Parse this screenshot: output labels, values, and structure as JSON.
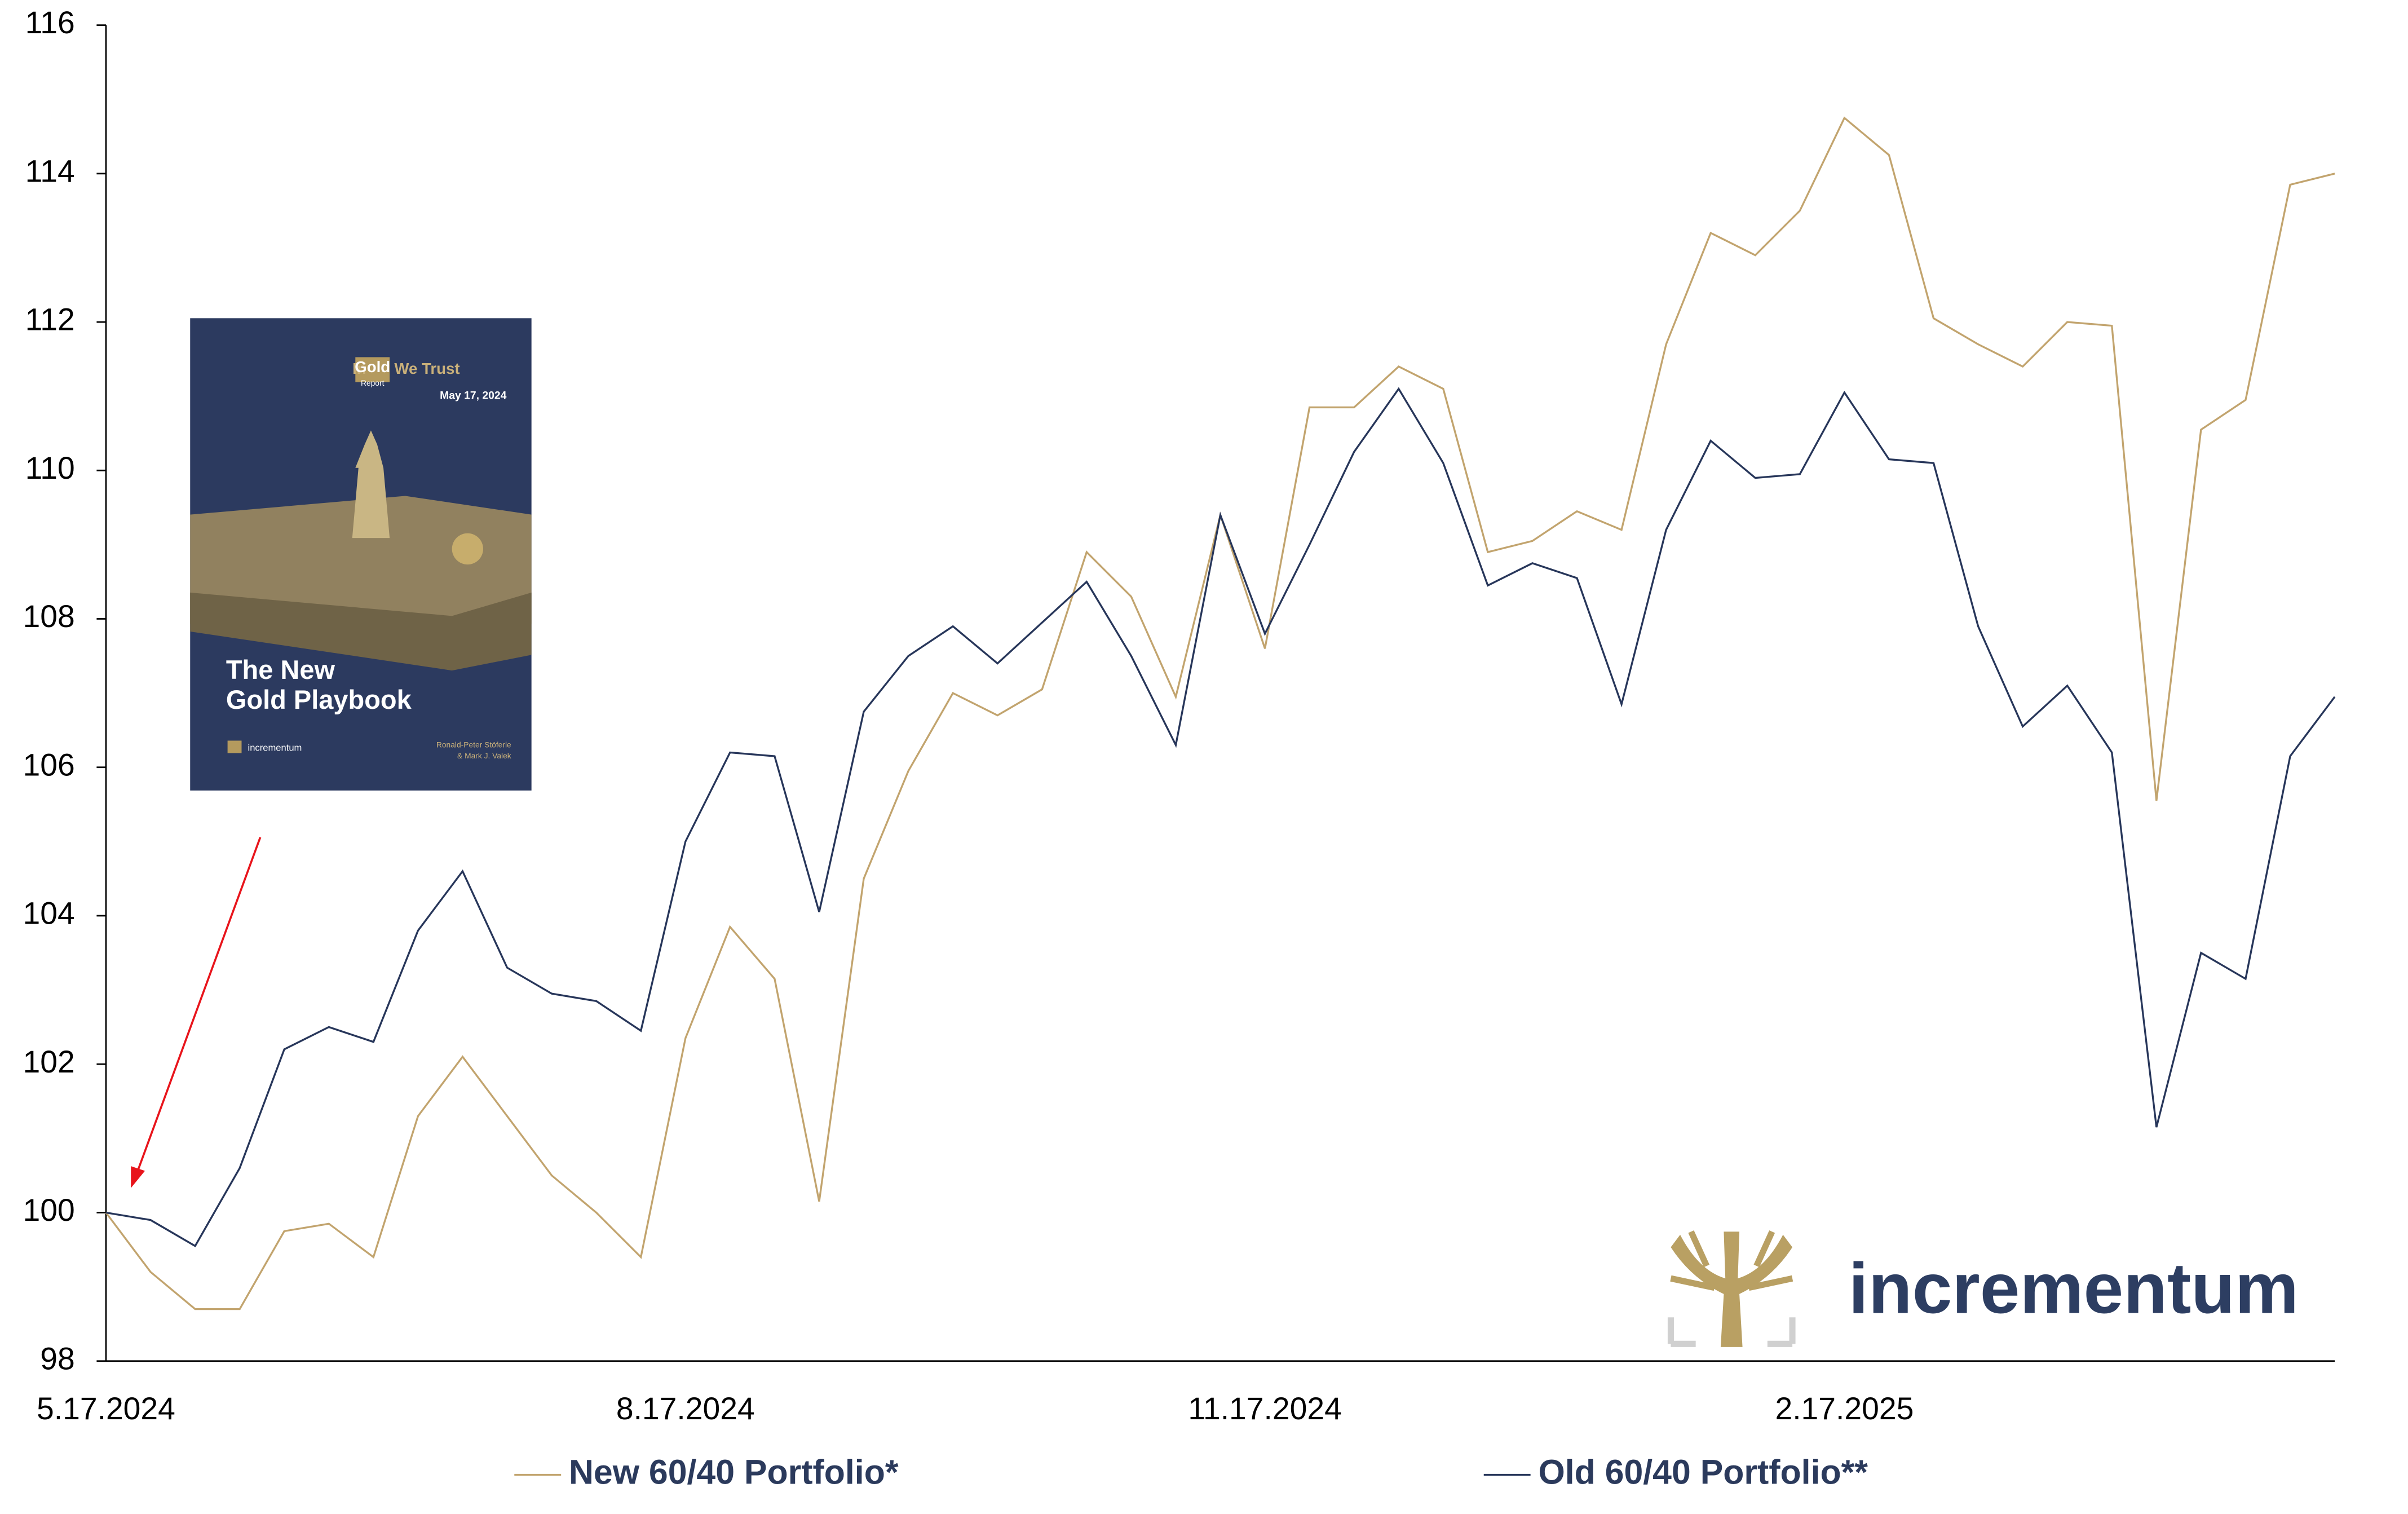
{
  "chart_data": {
    "type": "line",
    "categories": [
      "5.17.2024",
      null,
      null,
      null,
      null,
      null,
      null,
      null,
      null,
      null,
      null,
      null,
      null,
      "8.17.2024",
      null,
      null,
      null,
      null,
      null,
      null,
      null,
      null,
      null,
      null,
      null,
      null,
      "11.17.2024",
      null,
      null,
      null,
      null,
      null,
      null,
      null,
      null,
      null,
      null,
      null,
      null,
      "2.17.2025",
      null,
      null,
      null,
      null,
      null,
      null,
      null,
      null,
      null,
      null,
      null
    ],
    "series": [
      {
        "name": "New 60/40 Portfolio*",
        "color": "#c2a46e",
        "values": [
          100,
          99.2,
          98.7,
          98.7,
          99.75,
          99.85,
          99.4,
          101.3,
          102.1,
          101.3,
          100.5,
          100.0,
          99.4,
          102.35,
          103.85,
          103.15,
          100.15,
          104.5,
          105.95,
          107.0,
          106.7,
          107.05,
          108.9,
          108.3,
          106.95,
          109.4,
          107.6,
          110.85,
          110.85,
          111.4,
          111.1,
          108.9,
          109.05,
          109.45,
          109.2,
          111.7,
          113.2,
          112.9,
          113.5,
          114.75,
          114.25,
          112.05,
          111.7,
          111.4,
          112.0,
          111.95,
          105.55,
          110.55,
          110.95,
          113.85,
          114.0
        ]
      },
      {
        "name": "Old 60/40 Portfolio**",
        "color": "#27365a",
        "values": [
          100,
          99.9,
          99.55,
          100.6,
          102.2,
          102.5,
          102.3,
          103.8,
          104.6,
          103.3,
          102.95,
          102.85,
          102.45,
          105.0,
          106.2,
          106.15,
          104.05,
          106.75,
          107.5,
          107.9,
          107.4,
          107.95,
          108.5,
          107.5,
          106.3,
          109.4,
          107.8,
          109.0,
          110.25,
          111.1,
          110.1,
          108.45,
          108.75,
          108.55,
          106.85,
          109.2,
          110.4,
          109.9,
          109.95,
          111.05,
          110.15,
          110.1,
          107.9,
          106.55,
          107.1,
          106.2,
          101.15,
          103.5,
          103.15,
          106.15,
          106.95
        ]
      }
    ],
    "ylim": [
      98,
      116
    ],
    "yticks": [
      98,
      100,
      102,
      104,
      106,
      108,
      110,
      112,
      114,
      116
    ],
    "grid": false,
    "legend": "bottom",
    "cover": {
      "brand_1": "In",
      "brand_2": "Gold",
      "brand_3": "We Trust",
      "brand_sub": "Report",
      "date": "May 17, 2024",
      "title_1": "The New",
      "title_2": "Gold Playbook",
      "publisher": "incrementum",
      "authors_1": "Ronald-Peter Stöferle",
      "authors_2": "& Mark J. Valek"
    },
    "logo_text": "incrementum"
  }
}
